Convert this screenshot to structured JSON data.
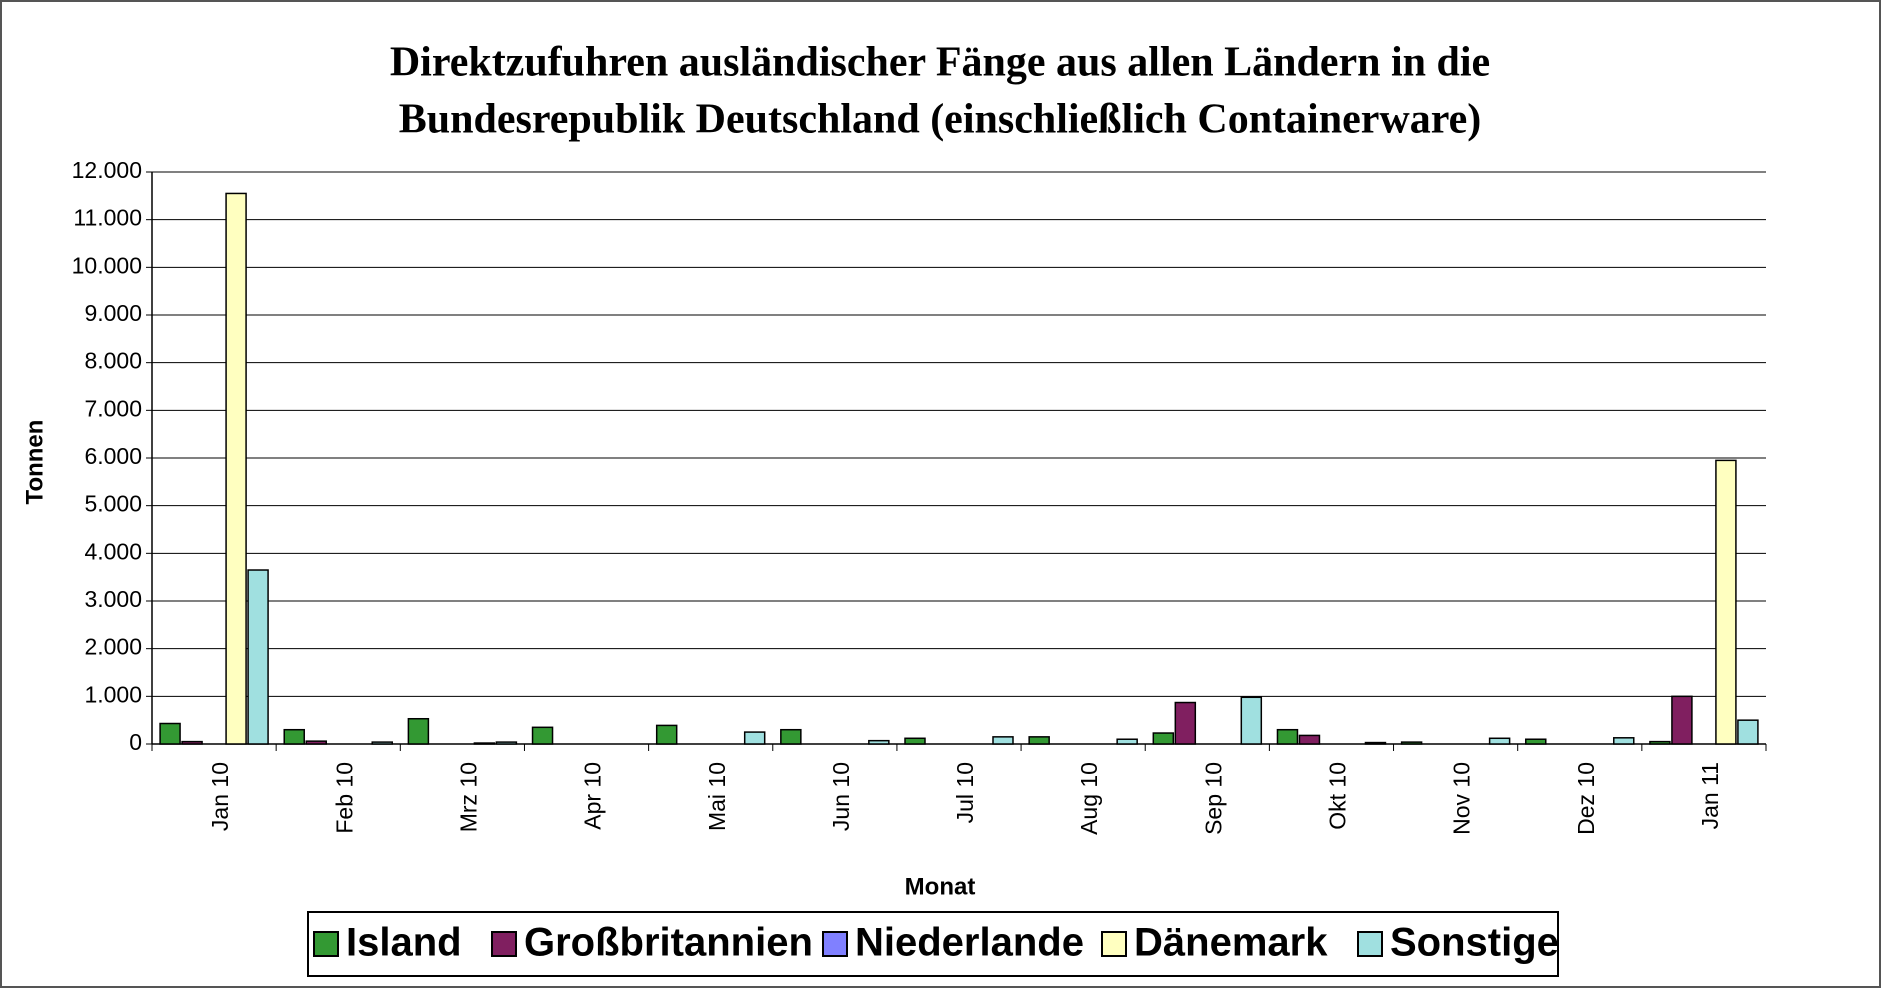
{
  "chart_data": {
    "type": "bar",
    "title": "Direktzufuhren ausländischer Fänge aus allen Ländern in die",
    "subtitle": "Bundesrepublik Deutschland (einschließlich Containerware)",
    "x_label": "Monat",
    "y_label": "Tonnen",
    "categories": [
      "Jan 10",
      "Feb 10",
      "Mrz 10",
      "Apr 10",
      "Mai 10",
      "Jun 10",
      "Jul 10",
      "Aug 10",
      "Sep 10",
      "Okt 10",
      "Nov 10",
      "Dez 10",
      "Jan 11"
    ],
    "series": [
      {
        "name": "Island",
        "color": "#339933",
        "values": [
          430,
          300,
          530,
          350,
          390,
          300,
          120,
          150,
          230,
          300,
          40,
          100,
          50
        ]
      },
      {
        "name": "Großbritannien",
        "color": "#801f60",
        "values": [
          50,
          60,
          0,
          0,
          0,
          0,
          0,
          0,
          870,
          180,
          0,
          0,
          1000
        ]
      },
      {
        "name": "Niederlande",
        "color": "#8080ff",
        "values": [
          0,
          0,
          0,
          0,
          0,
          0,
          0,
          0,
          0,
          0,
          0,
          0,
          0
        ]
      },
      {
        "name": "Dänemark",
        "color": "#ffffc0",
        "values": [
          11550,
          0,
          20,
          0,
          0,
          0,
          0,
          0,
          0,
          0,
          0,
          0,
          5950
        ]
      },
      {
        "name": "Sonstige",
        "color": "#a0e0e0",
        "values": [
          3650,
          40,
          40,
          0,
          250,
          70,
          150,
          100,
          980,
          30,
          120,
          130,
          500
        ]
      }
    ],
    "ylim": [
      0,
      12000
    ],
    "yticks": [
      0,
      {
        "value": 1000,
        "label": "1.000"
      },
      {
        "value": 2000,
        "label": "2.000"
      },
      {
        "value": 3000,
        "label": "3.000"
      },
      {
        "value": 4000,
        "label": "4.000"
      },
      {
        "value": 5000,
        "label": "5.000"
      },
      {
        "value": 6000,
        "label": "6.000"
      },
      {
        "value": 7000,
        "label": "7.000"
      },
      {
        "value": 8000,
        "label": "8.000"
      },
      {
        "value": 9000,
        "label": "9.000"
      },
      {
        "value": 10000,
        "label": "10.000"
      },
      {
        "value": 11000,
        "label": "11.000"
      },
      {
        "value": 12000,
        "label": "12.000"
      }
    ],
    "grid": true,
    "legend": "bottom"
  }
}
